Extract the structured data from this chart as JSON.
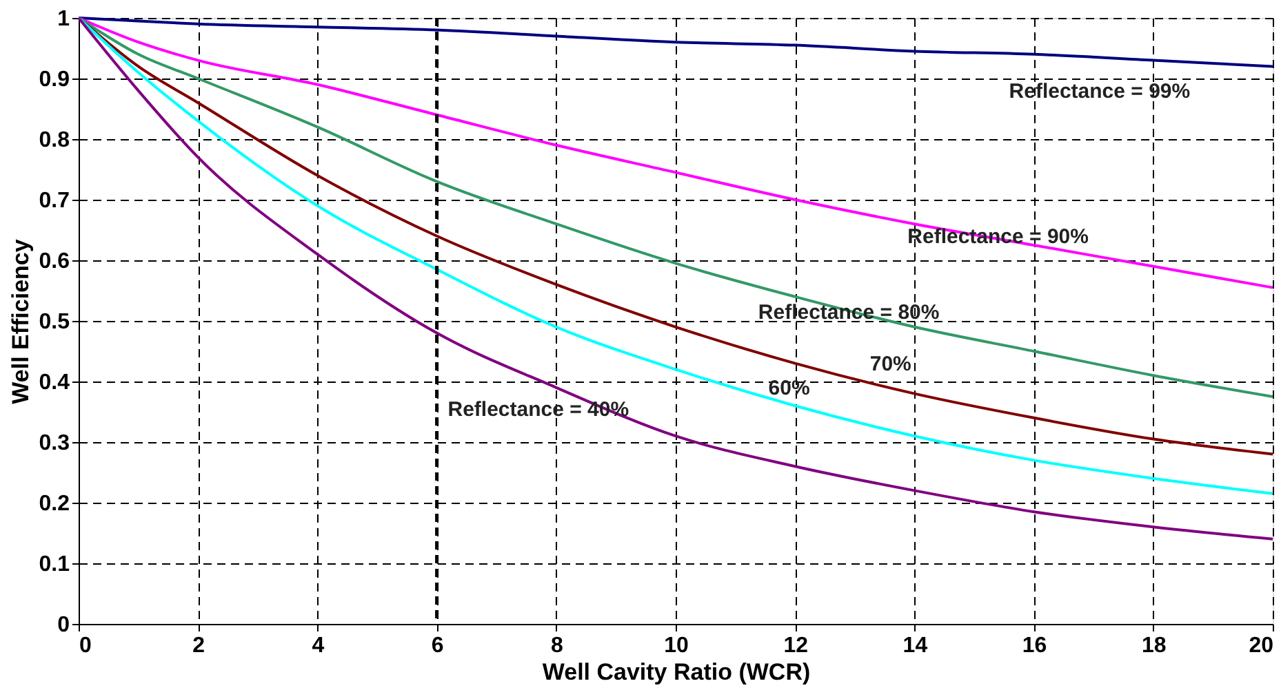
{
  "chart_data": {
    "type": "line",
    "xlabel": "Well Cavity Ratio (WCR)",
    "ylabel": "Well Efficiency",
    "x": [
      0,
      1,
      2,
      4,
      6,
      8,
      10,
      12,
      14,
      16,
      18,
      20
    ],
    "series": [
      {
        "color": "#000080",
        "values": [
          1,
          0.995,
          0.99,
          0.985,
          0.98,
          0.97,
          0.96,
          0.955,
          0.945,
          0.94,
          0.93,
          0.92
        ]
      },
      {
        "color": "#ff00ff",
        "values": [
          1,
          0.96,
          0.93,
          0.89,
          0.84,
          0.79,
          0.745,
          0.7,
          0.66,
          0.625,
          0.59,
          0.555
        ]
      },
      {
        "color": "#339966",
        "values": [
          1,
          0.94,
          0.9,
          0.82,
          0.73,
          0.66,
          0.595,
          0.54,
          0.49,
          0.45,
          0.41,
          0.375
        ]
      },
      {
        "color": "#800000",
        "values": [
          1,
          0.92,
          0.86,
          0.74,
          0.64,
          0.56,
          0.49,
          0.43,
          0.38,
          0.34,
          0.305,
          0.28
        ]
      },
      {
        "color": "#00ffff",
        "values": [
          1,
          0.91,
          0.83,
          0.69,
          0.585,
          0.49,
          0.42,
          0.36,
          0.31,
          0.27,
          0.24,
          0.215
        ]
      },
      {
        "color": "#800080",
        "values": [
          1,
          0.88,
          0.77,
          0.61,
          0.48,
          0.39,
          0.31,
          0.26,
          0.22,
          0.185,
          0.16,
          0.14
        ]
      }
    ],
    "annotations": [
      "Reflectance = 99%",
      {
        "text": "Reflectance = 90%",
        "x": 15.4,
        "y": 0.64
      },
      {
        "text": "Reflectance = 80%",
        "x": 12.9,
        "y": 0.515
      },
      "70%",
      "60%",
      "Reflectance = 40%"
    ],
    "ref_lines": [
      {
        "axis": "x",
        "value": 6,
        "color": "#000000",
        "line_style": "dashed"
      }
    ],
    "xlim": [
      0,
      20
    ],
    "xticks": [
      0,
      2,
      4,
      6,
      8,
      10,
      12,
      14,
      16,
      18,
      20
    ],
    "ylim": [
      0,
      1
    ],
    "yticks": [
      0,
      0.1,
      0.2,
      0.3,
      0.4,
      0.5,
      0.6,
      0.7,
      0.8,
      0.9,
      1
    ],
    "grid": true,
    "marker": "none",
    "line_style": "solid"
  }
}
